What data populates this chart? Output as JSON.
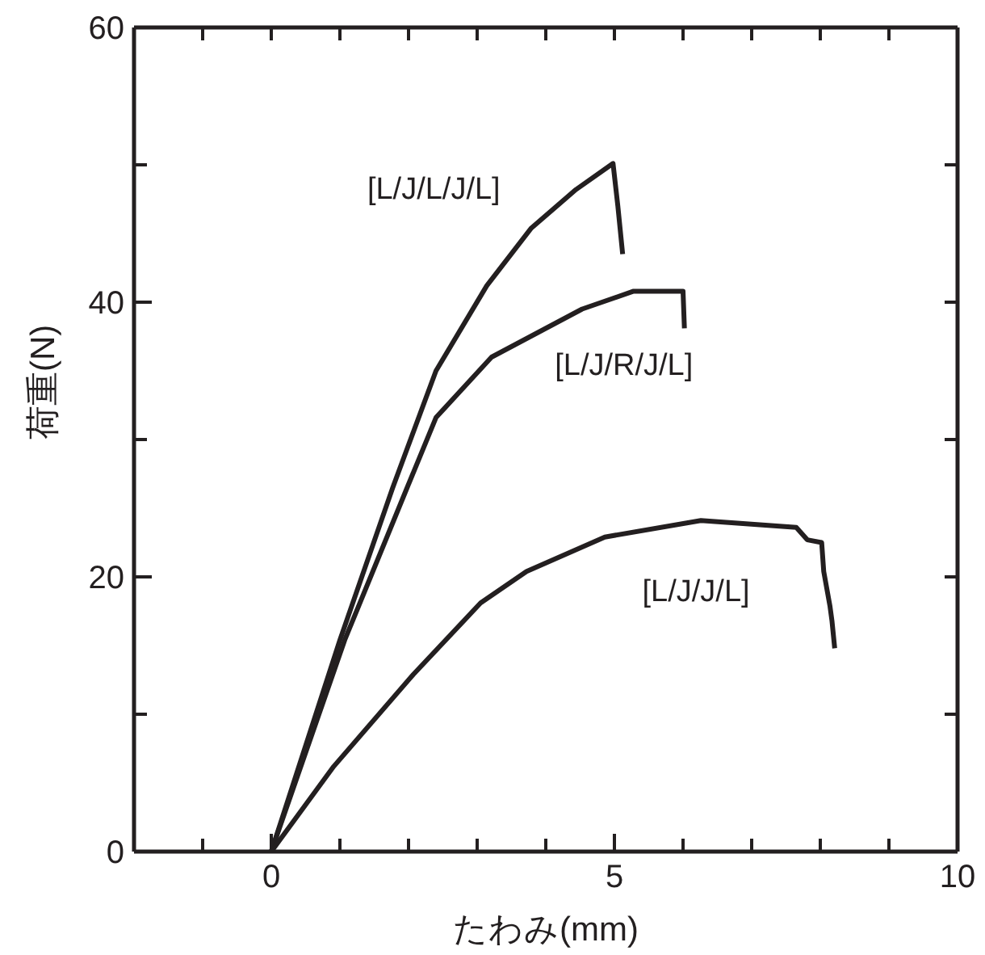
{
  "chart_data": {
    "type": "line",
    "xlabel": "たわみ(mm)",
    "ylabel": "荷重(N)",
    "xlim": [
      -2,
      10
    ],
    "ylim": [
      0,
      60
    ],
    "xticks": [
      {
        "value": -1,
        "label": null
      },
      0,
      {
        "value": 1,
        "label": null
      },
      {
        "value": 2,
        "label": null
      },
      {
        "value": 3,
        "label": null
      },
      {
        "value": 4,
        "label": null
      },
      5,
      {
        "value": 6,
        "label": null
      },
      {
        "value": 7,
        "label": null
      },
      {
        "value": 8,
        "label": null
      },
      {
        "value": 9,
        "label": null
      },
      10
    ],
    "yticks": [
      0,
      {
        "value": 10,
        "label": null
      },
      20,
      {
        "value": 30,
        "label": null
      },
      40,
      {
        "value": 50,
        "label": null
      },
      60
    ],
    "marker": "none",
    "line_style": "solid",
    "series": [
      {
        "name": "[L/J/L/J/L]",
        "color": "#231f20",
        "x": [
          0,
          1.0,
          1.77,
          2.4,
          3.14,
          3.79,
          4.44,
          4.98,
          5.05,
          5.12
        ],
        "values": [
          0,
          15.4,
          26.5,
          35,
          41.2,
          45.4,
          48.2,
          50.1,
          47,
          43.5
        ]
      },
      {
        "name": "[L/J/R/J/L]",
        "color": "#231f20",
        "x": [
          0,
          1.07,
          1.98,
          2.4,
          3.21,
          4.53,
          5.28,
          6.0,
          6.02
        ],
        "values": [
          0,
          15.4,
          26.5,
          31.6,
          36,
          39.5,
          40.8,
          40.8,
          38.1
        ]
      },
      {
        "name": "[L/J/J/L]",
        "color": "#231f20",
        "x": [
          0,
          0.91,
          2.07,
          3.05,
          3.72,
          4.86,
          6.26,
          7.65,
          7.81,
          8.02,
          8.05,
          8.14,
          8.17,
          8.21
        ],
        "values": [
          0,
          6.2,
          12.9,
          18.1,
          20.4,
          22.9,
          24.1,
          23.6,
          22.7,
          22.5,
          20.4,
          17.9,
          16.8,
          14.8
        ]
      }
    ]
  }
}
